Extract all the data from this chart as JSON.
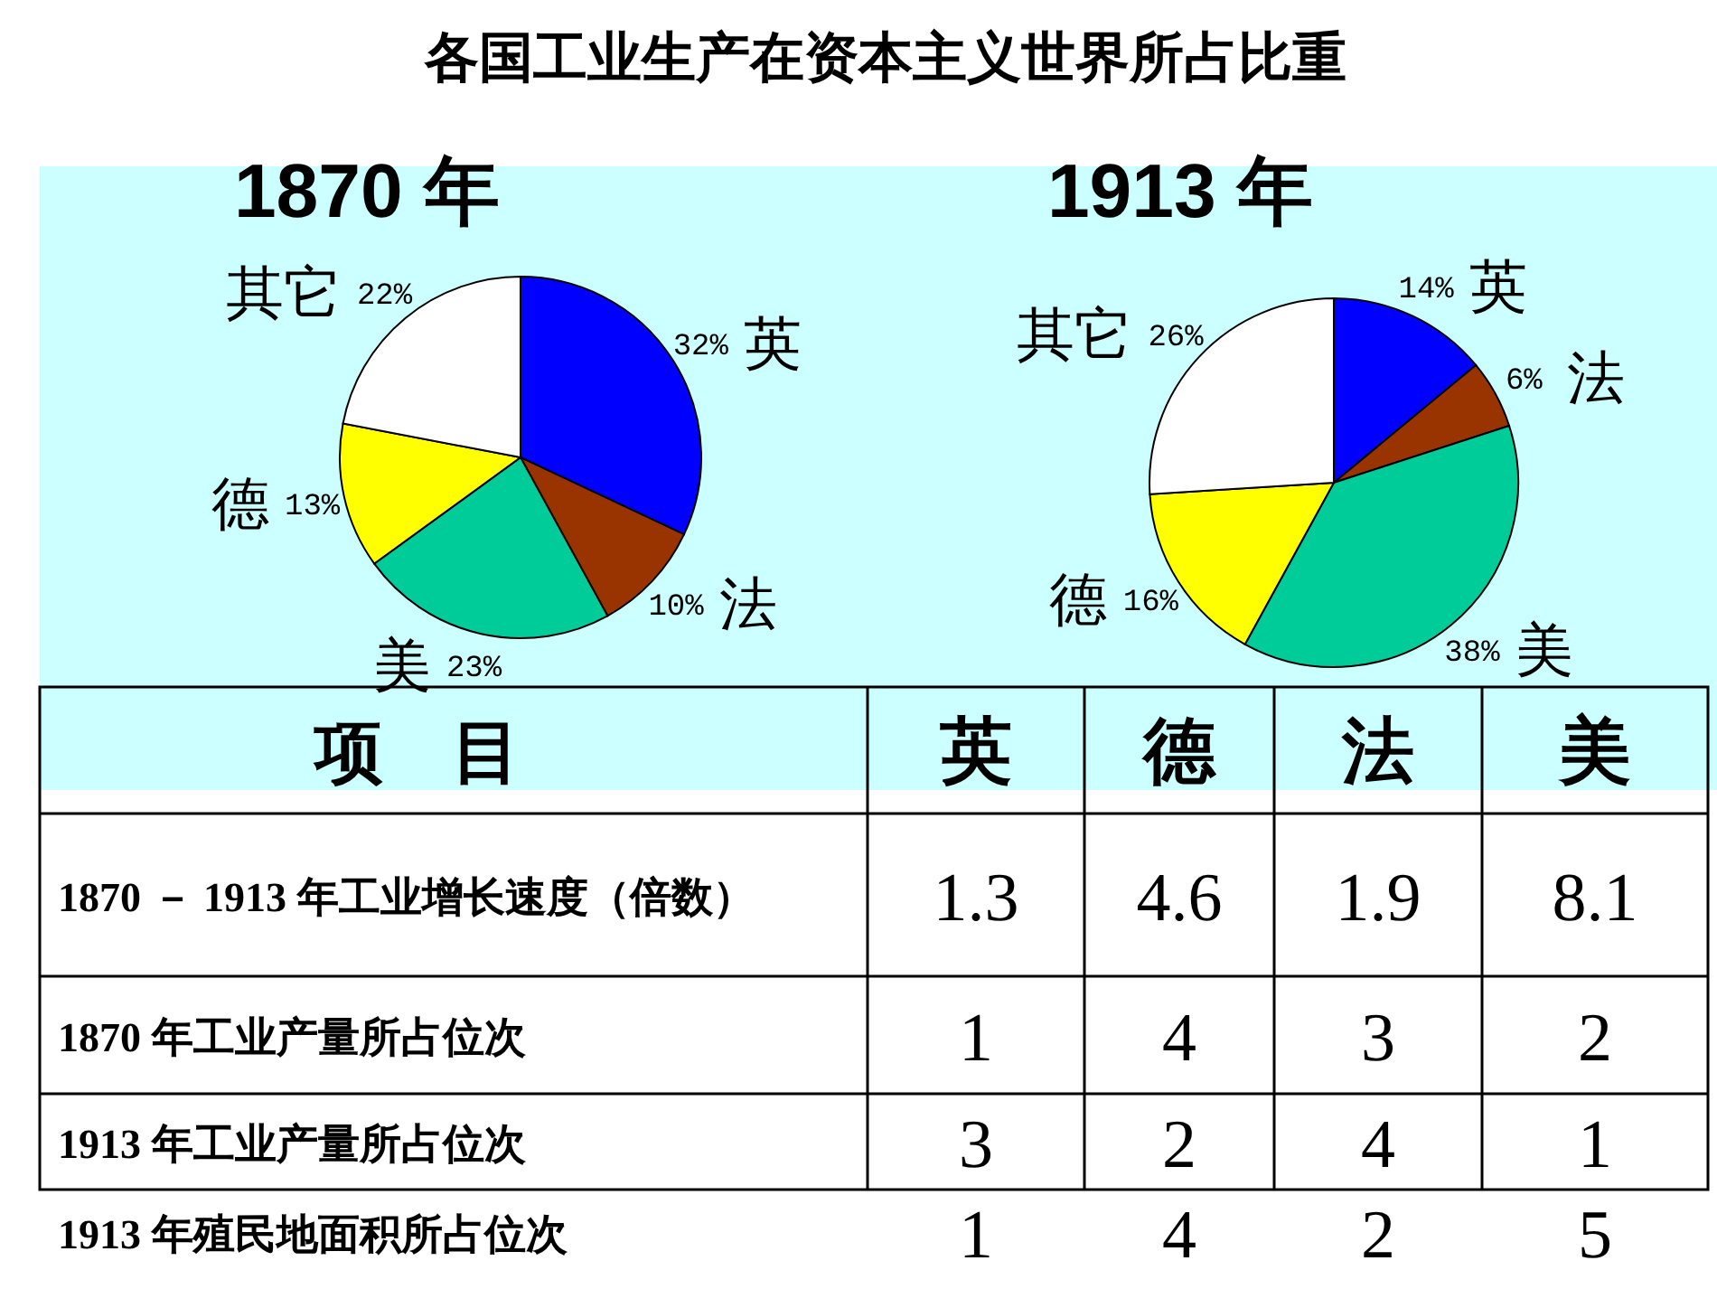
{
  "chart_data": [
    {
      "type": "pie",
      "title": "各国工业生产在资本主义世界所占比重",
      "subtitle": "1870 年",
      "categories": [
        "英",
        "法",
        "美",
        "德",
        "其它"
      ],
      "values": [
        32,
        10,
        23,
        13,
        22
      ],
      "colors": [
        "#0000ff",
        "#993300",
        "#00cc99",
        "#ffff00",
        "#ffffff"
      ],
      "value_labels": [
        "32%",
        "10%",
        "23%",
        "13%",
        "22%"
      ]
    },
    {
      "type": "pie",
      "subtitle": "1913 年",
      "categories": [
        "英",
        "法",
        "美",
        "德",
        "其它"
      ],
      "values": [
        14,
        6,
        38,
        16,
        26
      ],
      "colors": [
        "#0000ff",
        "#993300",
        "#00cc99",
        "#ffff00",
        "#ffffff"
      ],
      "value_labels": [
        "14%",
        "6%",
        "38%",
        "16%",
        "26%"
      ]
    },
    {
      "type": "heatmap",
      "ylabel": "项　目",
      "categories": [
        "英",
        "德",
        "法",
        "美"
      ],
      "y_categories": [
        "1870 － 1913 年工业增长速度（倍数）",
        "1870 年工业产量所占位次",
        "1913 年工业产量所占位次",
        "1913 年殖民地面积所占位次"
      ],
      "cells": [
        [
          1.3,
          4.6,
          1.9,
          8.1
        ],
        [
          1,
          4,
          3,
          2
        ],
        [
          3,
          2,
          4,
          1
        ],
        [
          1,
          4,
          2,
          5
        ]
      ],
      "data_labels": true
    }
  ]
}
